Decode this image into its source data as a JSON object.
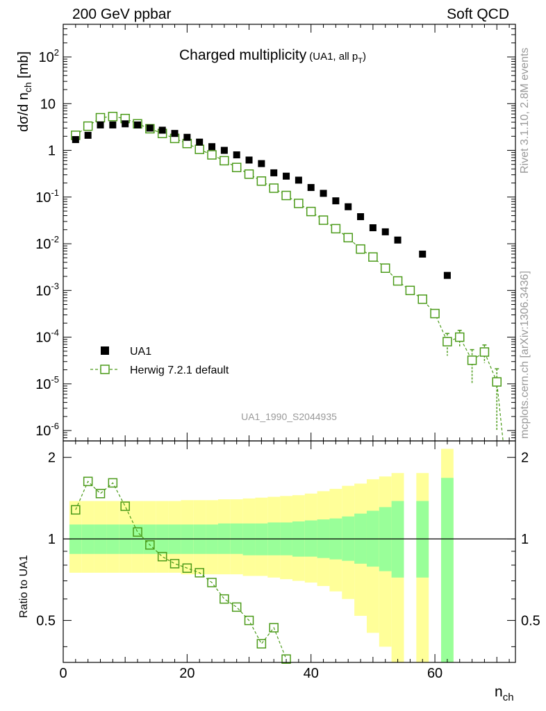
{
  "header": {
    "left": "200 GeV ppbar",
    "right": "Soft QCD"
  },
  "side_labels": {
    "rivet": "Rivet 3.1.10,  2.8M events",
    "mcplots": "mcplots.cern.ch [arXiv:1306.3436]"
  },
  "chart_data": {
    "type": "scatter",
    "title": "Charged multiplicity",
    "title_note": "(UA1, all p",
    "title_note_sub": "T",
    "title_note_end": ")",
    "analysis_id": "UA1_1990_S2044935",
    "xlabel": "n",
    "xlabel_sub": "ch",
    "ylabel": {
      "main": "dσ/d n",
      "sub": "ch",
      "unit": " [mb]"
    },
    "ratio_ylabel": "Ratio to UA1",
    "xlim": [
      0,
      73
    ],
    "ylim": [
      6e-07,
      500
    ],
    "ratio_ylim": [
      0.35,
      2.3
    ],
    "x_ticks": [
      0,
      20,
      40,
      60
    ],
    "y_ticks": [
      {
        "base": "10",
        "exp": "-6",
        "value": 1e-06
      },
      {
        "base": "10",
        "exp": "-5",
        "value": 1e-05
      },
      {
        "base": "10",
        "exp": "-4",
        "value": 0.0001
      },
      {
        "base": "10",
        "exp": "-3",
        "value": 0.001
      },
      {
        "base": "10",
        "exp": "-2",
        "value": 0.01
      },
      {
        "base": "10",
        "exp": "-1",
        "value": 0.1
      },
      {
        "base": "1",
        "exp": "",
        "value": 1
      },
      {
        "base": "10",
        "exp": "",
        "value": 10
      },
      {
        "base": "10",
        "exp": "2",
        "value": 100
      }
    ],
    "ratio_ticks": [
      0.5,
      1,
      2
    ],
    "legend": {
      "position": "bottom-left",
      "entries": [
        "UA1",
        "Herwig 7.2.1 default"
      ]
    },
    "series": [
      {
        "name": "UA1",
        "style": "filled-square",
        "color": "#000000",
        "x": [
          2,
          4,
          6,
          8,
          10,
          12,
          14,
          16,
          18,
          20,
          22,
          24,
          26,
          28,
          30,
          32,
          34,
          36,
          38,
          40,
          42,
          44,
          46,
          48,
          50,
          52,
          54,
          58,
          62
        ],
        "y": [
          1.7,
          2.1,
          3.5,
          3.5,
          3.7,
          3.5,
          3.0,
          2.7,
          2.3,
          1.9,
          1.5,
          1.2,
          1.0,
          0.8,
          0.62,
          0.52,
          0.33,
          0.28,
          0.23,
          0.16,
          0.12,
          0.083,
          0.062,
          0.038,
          0.022,
          0.018,
          0.012,
          0.006,
          0.0021
        ]
      },
      {
        "name": "Herwig 7.2.1 default",
        "style": "open-square-dashed",
        "color": "#4a9a18",
        "x": [
          2,
          4,
          6,
          8,
          10,
          12,
          14,
          16,
          18,
          20,
          22,
          24,
          26,
          28,
          30,
          32,
          34,
          36,
          38,
          40,
          42,
          44,
          46,
          48,
          50,
          52,
          54,
          56,
          58,
          60,
          62,
          64,
          66,
          68,
          70
        ],
        "y": [
          2.1,
          3.3,
          5.0,
          5.3,
          4.8,
          3.7,
          2.9,
          2.3,
          1.8,
          1.4,
          1.05,
          0.8,
          0.6,
          0.43,
          0.31,
          0.22,
          0.155,
          0.108,
          0.073,
          0.049,
          0.032,
          0.021,
          0.0135,
          0.0077,
          0.0052,
          0.003,
          0.0016,
          0.001,
          0.00065,
          0.00032,
          8e-05,
          0.0001,
          3.2e-05,
          4.8e-05,
          1.1e-05
        ],
        "y_err": [
          0,
          0,
          0,
          0,
          0,
          0,
          0,
          0,
          0,
          0,
          0,
          0,
          0,
          0,
          0,
          0,
          0,
          0,
          0,
          0,
          0,
          0,
          0,
          0,
          0,
          0,
          0,
          0,
          0,
          6e-05,
          4e-05,
          4e-05,
          2.2e-05,
          2e-05,
          1e-05
        ]
      }
    ],
    "ratio": {
      "x": [
        2,
        4,
        6,
        8,
        10,
        12,
        14,
        16,
        18,
        20,
        22,
        24,
        26,
        28,
        30,
        32,
        34,
        36
      ],
      "y": [
        1.28,
        1.63,
        1.47,
        1.61,
        1.32,
        1.06,
        0.95,
        0.86,
        0.81,
        0.78,
        0.75,
        0.69,
        0.6,
        0.56,
        0.5,
        0.41,
        0.47,
        0.36
      ]
    },
    "bands": [
      {
        "x0": 1,
        "x1": 3,
        "inner": [
          0.88,
          1.13
        ],
        "outer": [
          0.75,
          1.38
        ]
      },
      {
        "x0": 3,
        "x1": 5,
        "inner": [
          0.88,
          1.13
        ],
        "outer": [
          0.75,
          1.38
        ]
      },
      {
        "x0": 5,
        "x1": 7,
        "inner": [
          0.88,
          1.13
        ],
        "outer": [
          0.75,
          1.38
        ]
      },
      {
        "x0": 7,
        "x1": 9,
        "inner": [
          0.88,
          1.13
        ],
        "outer": [
          0.75,
          1.38
        ]
      },
      {
        "x0": 9,
        "x1": 11,
        "inner": [
          0.88,
          1.13
        ],
        "outer": [
          0.75,
          1.38
        ]
      },
      {
        "x0": 11,
        "x1": 13,
        "inner": [
          0.88,
          1.13
        ],
        "outer": [
          0.75,
          1.38
        ]
      },
      {
        "x0": 13,
        "x1": 15,
        "inner": [
          0.88,
          1.13
        ],
        "outer": [
          0.75,
          1.38
        ]
      },
      {
        "x0": 15,
        "x1": 17,
        "inner": [
          0.88,
          1.13
        ],
        "outer": [
          0.75,
          1.38
        ]
      },
      {
        "x0": 17,
        "x1": 19,
        "inner": [
          0.88,
          1.13
        ],
        "outer": [
          0.75,
          1.38
        ]
      },
      {
        "x0": 19,
        "x1": 21,
        "inner": [
          0.88,
          1.13
        ],
        "outer": [
          0.74,
          1.39
        ]
      },
      {
        "x0": 21,
        "x1": 23,
        "inner": [
          0.88,
          1.13
        ],
        "outer": [
          0.74,
          1.39
        ]
      },
      {
        "x0": 23,
        "x1": 25,
        "inner": [
          0.88,
          1.13
        ],
        "outer": [
          0.74,
          1.39
        ]
      },
      {
        "x0": 25,
        "x1": 27,
        "inner": [
          0.88,
          1.14
        ],
        "outer": [
          0.74,
          1.4
        ]
      },
      {
        "x0": 27,
        "x1": 29,
        "inner": [
          0.88,
          1.14
        ],
        "outer": [
          0.74,
          1.4
        ]
      },
      {
        "x0": 29,
        "x1": 31,
        "inner": [
          0.87,
          1.14
        ],
        "outer": [
          0.73,
          1.41
        ]
      },
      {
        "x0": 31,
        "x1": 33,
        "inner": [
          0.87,
          1.14
        ],
        "outer": [
          0.73,
          1.42
        ]
      },
      {
        "x0": 33,
        "x1": 35,
        "inner": [
          0.87,
          1.15
        ],
        "outer": [
          0.72,
          1.43
        ]
      },
      {
        "x0": 35,
        "x1": 37,
        "inner": [
          0.87,
          1.15
        ],
        "outer": [
          0.71,
          1.44
        ]
      },
      {
        "x0": 37,
        "x1": 39,
        "inner": [
          0.86,
          1.16
        ],
        "outer": [
          0.7,
          1.45
        ]
      },
      {
        "x0": 39,
        "x1": 41,
        "inner": [
          0.86,
          1.17
        ],
        "outer": [
          0.69,
          1.47
        ]
      },
      {
        "x0": 41,
        "x1": 43,
        "inner": [
          0.85,
          1.18
        ],
        "outer": [
          0.67,
          1.5
        ]
      },
      {
        "x0": 43,
        "x1": 45,
        "inner": [
          0.84,
          1.19
        ],
        "outer": [
          0.64,
          1.53
        ]
      },
      {
        "x0": 45,
        "x1": 47,
        "inner": [
          0.83,
          1.21
        ],
        "outer": [
          0.6,
          1.57
        ]
      },
      {
        "x0": 47,
        "x1": 49,
        "inner": [
          0.81,
          1.24
        ],
        "outer": [
          0.52,
          1.6
        ]
      },
      {
        "x0": 49,
        "x1": 51,
        "inner": [
          0.79,
          1.27
        ],
        "outer": [
          0.45,
          1.66
        ]
      },
      {
        "x0": 51,
        "x1": 53,
        "inner": [
          0.76,
          1.31
        ],
        "outer": [
          0.4,
          1.7
        ]
      },
      {
        "x0": 53,
        "x1": 55,
        "inner": [
          0.72,
          1.38
        ],
        "outer": [
          0.35,
          1.75
        ]
      },
      {
        "x0": 57,
        "x1": 59,
        "inner": [
          0.72,
          1.38
        ],
        "outer": [
          0.35,
          1.75
        ]
      },
      {
        "x0": 61,
        "x1": 63,
        "inner": [
          0.35,
          1.68
        ],
        "outer": [
          0.35,
          2.15
        ]
      }
    ]
  }
}
